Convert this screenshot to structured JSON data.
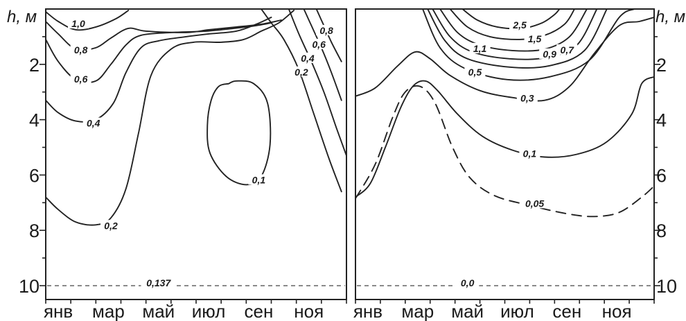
{
  "chart_data": [
    {
      "type": "contour",
      "ylabel": "h, м",
      "y_axis_side": "left",
      "ylim": [
        0,
        10.5
      ],
      "y_reversed": true,
      "y_ticks": [
        2,
        4,
        6,
        8,
        10
      ],
      "y_tick_labels": [
        "2",
        "4",
        "6",
        "8",
        "10"
      ],
      "xlim": [
        0,
        12
      ],
      "x_tick_labels": [
        "янв",
        "мар",
        "май",
        "июл",
        "сен",
        "ноя"
      ],
      "x_tick_positions": [
        0.5,
        2.5,
        4.5,
        6.5,
        8.5,
        10.5
      ],
      "reference_line": {
        "label": "0,137",
        "depth": 10,
        "label_x": 4.5
      },
      "contours": [
        {
          "level": "1,0",
          "dashed": false,
          "label_at": [
            1.3,
            0.55
          ],
          "points": [
            [
              0,
              0.1
            ],
            [
              0.5,
              0.45
            ],
            [
              1.2,
              0.75
            ],
            [
              2.0,
              0.65
            ],
            [
              2.8,
              0.35
            ],
            [
              3.3,
              0.05
            ]
          ]
        },
        {
          "level": "0,8",
          "dashed": false,
          "label_at": [
            1.4,
            1.5
          ],
          "points": [
            [
              0,
              0.45
            ],
            [
              0.5,
              0.9
            ],
            [
              1.2,
              1.45
            ],
            [
              2.0,
              1.4
            ],
            [
              2.6,
              1.05
            ],
            [
              3.3,
              0.7
            ],
            [
              4.0,
              0.8
            ],
            [
              5.6,
              0.85
            ],
            [
              6.5,
              0.75
            ],
            [
              7.6,
              0.65
            ],
            [
              8.6,
              0.55
            ],
            [
              9.4,
              0.4
            ]
          ]
        },
        {
          "level": "0,6",
          "dashed": false,
          "label_at": [
            1.4,
            2.55
          ],
          "points": [
            [
              0,
              1.1
            ],
            [
              0.5,
              1.9
            ],
            [
              1.2,
              2.55
            ],
            [
              2.0,
              2.6
            ],
            [
              2.6,
              2.0
            ],
            [
              3.2,
              1.3
            ],
            [
              3.8,
              0.95
            ],
            [
              5.0,
              0.85
            ],
            [
              6.4,
              0.8
            ],
            [
              7.5,
              0.7
            ],
            [
              8.4,
              0.6
            ],
            [
              9.0,
              0.5
            ]
          ]
        },
        {
          "level": "0,4",
          "dashed": false,
          "label_at": [
            1.9,
            4.15
          ],
          "points": [
            [
              0,
              3.3
            ],
            [
              0.5,
              3.75
            ],
            [
              1.2,
              4.05
            ],
            [
              2.0,
              4.0
            ],
            [
              2.7,
              3.4
            ],
            [
              3.2,
              2.3
            ],
            [
              3.8,
              1.4
            ],
            [
              4.5,
              1.15
            ],
            [
              5.6,
              1.0
            ],
            [
              6.5,
              0.9
            ],
            [
              7.6,
              0.8
            ],
            [
              8.4,
              0.55
            ],
            [
              9.0,
              0.3
            ]
          ]
        },
        {
          "level": "0,2",
          "dashed": false,
          "label_at": [
            2.6,
            7.85
          ],
          "points": [
            [
              0,
              6.8
            ],
            [
              0.5,
              7.25
            ],
            [
              1.2,
              7.7
            ],
            [
              2.0,
              7.8
            ],
            [
              2.6,
              7.55
            ],
            [
              3.2,
              6.5
            ],
            [
              3.7,
              4.5
            ],
            [
              4.2,
              2.4
            ],
            [
              5.0,
              1.45
            ],
            [
              5.9,
              1.2
            ],
            [
              7.0,
              1.2
            ],
            [
              7.9,
              1.1
            ],
            [
              8.6,
              0.8
            ],
            [
              9.3,
              0.5
            ],
            [
              9.9,
              0.05
            ]
          ]
        },
        {
          "level": "0,1",
          "dashed": false,
          "label_at": [
            8.5,
            6.2
          ],
          "points": [
            [
              7.3,
              2.7
            ],
            [
              6.9,
              2.8
            ],
            [
              6.6,
              3.3
            ],
            [
              6.45,
              4.2
            ],
            [
              6.55,
              5.2
            ],
            [
              7.2,
              6.05
            ],
            [
              8.0,
              6.35
            ],
            [
              8.6,
              6.05
            ],
            [
              8.95,
              4.9
            ],
            [
              8.85,
              3.4
            ],
            [
              8.3,
              2.7
            ],
            [
              7.6,
              2.6
            ],
            [
              7.3,
              2.7
            ]
          ]
        },
        {
          "level": "0,2",
          "dashed": false,
          "label_at": [
            10.2,
            2.3
          ],
          "points": [
            [
              8.6,
              0
            ],
            [
              9.0,
              0.5
            ],
            [
              9.5,
              1.1
            ],
            [
              10.1,
              2.2
            ],
            [
              10.7,
              3.8
            ],
            [
              11.3,
              5.4
            ],
            [
              11.8,
              6.6
            ]
          ]
        },
        {
          "level": "0,4",
          "dashed": false,
          "label_at": [
            10.45,
            1.8
          ],
          "points": [
            [
              9.7,
              0
            ],
            [
              10.1,
              0.9
            ],
            [
              10.6,
              1.9
            ],
            [
              11.1,
              3.0
            ],
            [
              11.6,
              4.3
            ],
            [
              12.0,
              5.3
            ]
          ]
        },
        {
          "level": "0,6",
          "dashed": false,
          "label_at": [
            10.9,
            1.3
          ],
          "points": [
            [
              10.3,
              0
            ],
            [
              10.6,
              0.6
            ],
            [
              11.0,
              1.4
            ],
            [
              11.4,
              2.3
            ],
            [
              11.8,
              3.3
            ]
          ]
        },
        {
          "level": "0,8",
          "dashed": false,
          "label_at": [
            11.2,
            0.8
          ],
          "points": [
            [
              10.8,
              0
            ],
            [
              11.1,
              0.6
            ],
            [
              11.4,
              1.2
            ],
            [
              11.8,
              1.9
            ]
          ]
        }
      ]
    },
    {
      "type": "contour",
      "ylabel": "h, м",
      "y_axis_side": "right",
      "ylim": [
        0,
        10.5
      ],
      "y_reversed": true,
      "y_ticks": [
        2,
        4,
        6,
        8,
        10
      ],
      "y_tick_labels": [
        "2",
        "4",
        "6",
        "8",
        "10"
      ],
      "xlim": [
        0,
        12
      ],
      "x_tick_labels": [
        "янв",
        "мар",
        "май",
        "июл",
        "сен",
        "ноя"
      ],
      "x_tick_positions": [
        0.5,
        2.5,
        4.5,
        6.5,
        8.5,
        10.5
      ],
      "reference_line": {
        "label": "0,0",
        "depth": 10,
        "label_x": 4.5
      },
      "contours": [
        {
          "level": "2,5",
          "dashed": false,
          "label_at": [
            6.6,
            0.6
          ],
          "points": [
            [
              4.3,
              0
            ],
            [
              4.9,
              0.4
            ],
            [
              5.7,
              0.65
            ],
            [
              6.7,
              0.7
            ],
            [
              7.5,
              0.5
            ],
            [
              8.0,
              0.2
            ],
            [
              8.2,
              0
            ]
          ]
        },
        {
          "level": "1,5",
          "dashed": false,
          "label_at": [
            7.2,
            1.1
          ],
          "points": [
            [
              3.8,
              0
            ],
            [
              4.5,
              0.65
            ],
            [
              5.4,
              1.0
            ],
            [
              6.6,
              1.1
            ],
            [
              7.6,
              0.95
            ],
            [
              8.4,
              0.55
            ],
            [
              8.8,
              0
            ]
          ]
        },
        {
          "level": "1,1",
          "dashed": false,
          "label_at": [
            5.0,
            1.45
          ],
          "points": [
            [
              3.4,
              0
            ],
            [
              4.1,
              0.85
            ],
            [
              5.0,
              1.3
            ],
            [
              6.3,
              1.5
            ],
            [
              7.6,
              1.45
            ],
            [
              8.6,
              1.0
            ],
            [
              9.3,
              0
            ]
          ]
        },
        {
          "level": "0,9",
          "dashed": false,
          "label_at": [
            7.8,
            1.65
          ],
          "points": [
            [
              3.1,
              0
            ],
            [
              3.8,
              1.0
            ],
            [
              4.7,
              1.55
            ],
            [
              6.2,
              1.8
            ],
            [
              7.7,
              1.75
            ],
            [
              8.9,
              1.3
            ],
            [
              9.7,
              0
            ]
          ]
        },
        {
          "level": "0,7",
          "dashed": false,
          "label_at": [
            8.5,
            1.5
          ],
          "points": [
            [
              2.9,
              0
            ],
            [
              3.6,
              1.15
            ],
            [
              4.5,
              1.8
            ],
            [
              6.2,
              2.1
            ],
            [
              7.8,
              2.05
            ],
            [
              9.2,
              1.5
            ],
            [
              10.1,
              0
            ]
          ]
        },
        {
          "level": "0,5",
          "dashed": false,
          "label_at": [
            4.8,
            2.3
          ],
          "points": [
            [
              2.7,
              0
            ],
            [
              3.4,
              1.4
            ],
            [
              4.4,
              2.15
            ],
            [
              6.1,
              2.55
            ],
            [
              7.8,
              2.45
            ],
            [
              9.4,
              1.85
            ],
            [
              10.6,
              0.3
            ],
            [
              11.2,
              0
            ]
          ]
        },
        {
          "level": "0,3",
          "dashed": false,
          "label_at": [
            6.9,
            3.25
          ],
          "points": [
            [
              0,
              3.15
            ],
            [
              0.8,
              2.85
            ],
            [
              1.7,
              2.05
            ],
            [
              2.4,
              1.55
            ],
            [
              3.0,
              1.8
            ],
            [
              3.8,
              2.4
            ],
            [
              5.0,
              2.95
            ],
            [
              6.3,
              3.2
            ],
            [
              7.6,
              3.3
            ],
            [
              8.6,
              2.8
            ],
            [
              9.6,
              1.6
            ],
            [
              10.6,
              0.6
            ],
            [
              11.4,
              0.45
            ],
            [
              12.0,
              0.3
            ]
          ]
        },
        {
          "level": "0,1",
          "dashed": false,
          "label_at": [
            7.0,
            5.25
          ],
          "points": [
            [
              0,
              6.8
            ],
            [
              0.6,
              6.3
            ],
            [
              1.2,
              5.0
            ],
            [
              1.8,
              3.6
            ],
            [
              2.3,
              2.8
            ],
            [
              2.8,
              2.6
            ],
            [
              3.3,
              2.95
            ],
            [
              4.1,
              3.8
            ],
            [
              5.1,
              4.6
            ],
            [
              6.3,
              5.1
            ],
            [
              7.6,
              5.35
            ],
            [
              8.9,
              5.25
            ],
            [
              10.1,
              4.8
            ],
            [
              11.1,
              3.8
            ],
            [
              11.5,
              2.7
            ],
            [
              12.0,
              2.45
            ]
          ]
        },
        {
          "level": "0,05",
          "dashed": true,
          "label_at": [
            7.2,
            7.05
          ],
          "points": [
            [
              0,
              6.85
            ],
            [
              0.8,
              5.6
            ],
            [
              1.5,
              3.9
            ],
            [
              2.0,
              3.0
            ],
            [
              2.6,
              2.8
            ],
            [
              3.2,
              3.4
            ],
            [
              3.9,
              5.0
            ],
            [
              4.6,
              6.1
            ],
            [
              5.6,
              6.75
            ],
            [
              7.0,
              7.1
            ],
            [
              8.5,
              7.4
            ],
            [
              9.6,
              7.5
            ],
            [
              10.6,
              7.35
            ],
            [
              11.5,
              6.8
            ],
            [
              12.0,
              6.4
            ]
          ]
        }
      ]
    }
  ]
}
